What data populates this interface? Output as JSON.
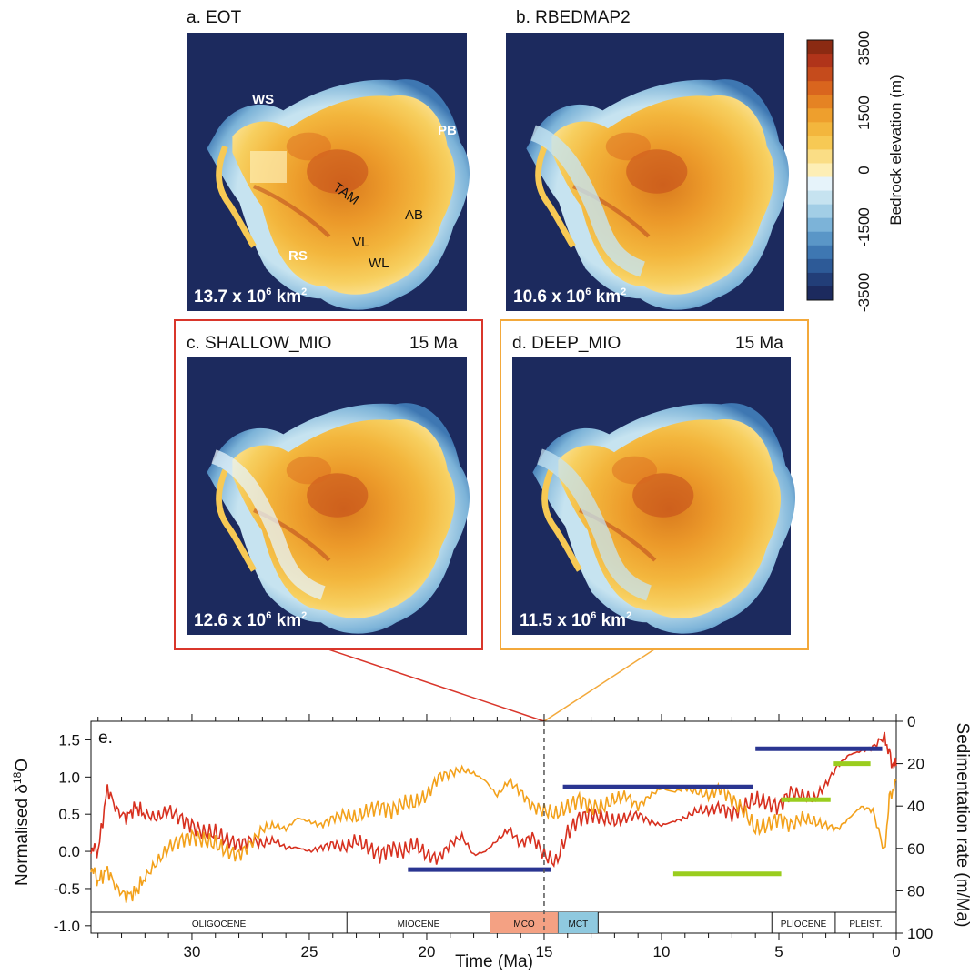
{
  "colors": {
    "ocean": "#1c2a5e",
    "red_series": "#d7301f",
    "orange_series": "#f3a11b",
    "blue_bars": "#2a3591",
    "green_bars": "#9acd1e",
    "frame_c": "#d9362b",
    "frame_d": "#f3a93b",
    "mco": "#f4a183",
    "mct": "#8fc9df"
  },
  "maps": [
    {
      "id": "a",
      "title": "a. EOT",
      "age": "",
      "area_base": "13.7 x 10",
      "area_exp": "6",
      "area_unit": " km",
      "area_sq": "2"
    },
    {
      "id": "b",
      "title": "b. RBEDMAP2",
      "age": "",
      "area_base": "10.6 x 10",
      "area_exp": "6",
      "area_unit": " km",
      "area_sq": "2"
    },
    {
      "id": "c",
      "title": "c. SHALLOW_MIO",
      "age": "15 Ma",
      "area_base": "12.6 x 10",
      "area_exp": "6",
      "area_unit": " km",
      "area_sq": "2"
    },
    {
      "id": "d",
      "title": "d. DEEP_MIO",
      "age": "15 Ma",
      "area_base": "11.5 x 10",
      "area_exp": "6",
      "area_unit": " km",
      "area_sq": "2"
    }
  ],
  "map_labels": {
    "WS": "WS",
    "PB": "PB",
    "TAM": "TAM",
    "AB": "AB",
    "RS": "RS",
    "VL": "VL",
    "WL": "WL"
  },
  "colorbar": {
    "title": "Bedrock elevation (m)",
    "ticks": [
      "3500",
      "1500",
      "0",
      "-1500",
      "-3500"
    ],
    "colors": [
      "#8b2a12",
      "#b0341a",
      "#c54b1c",
      "#d9651e",
      "#e58323",
      "#ee9f2d",
      "#f3b63d",
      "#f7c954",
      "#fadd85",
      "#fdeeb5",
      "#e6f3fa",
      "#c6e3f0",
      "#a2cee6",
      "#7cb3d8",
      "#5a96c7",
      "#3e77b2",
      "#2d5a97",
      "#223e78",
      "#1c2a5e"
    ]
  },
  "chart_data": {
    "type": "line",
    "panel_label": "e.",
    "xlabel": "Time (Ma)",
    "ylabel": "Normalised δ18O",
    "ylabel_main": "Normalised δ",
    "ylabel_sup": "18",
    "ylabel_end": "O",
    "y2label": "Sedimentation rate (m/Ma)",
    "xlim": [
      34.3,
      0
    ],
    "ylim": [
      -1.1,
      1.75
    ],
    "y2lim": [
      100,
      0
    ],
    "x_ticks": [
      30,
      25,
      20,
      15,
      10,
      5,
      0
    ],
    "x_tick_labels": [
      "30",
      "25",
      "20",
      "15",
      "10",
      "5",
      "0"
    ],
    "y_ticks": [
      1.5,
      1.0,
      0.5,
      0.0,
      -0.5,
      -1.0
    ],
    "y_tick_labels": [
      "1.5",
      "1.0",
      "0.5",
      "0.0",
      "-0.5",
      "-1.0"
    ],
    "y2_ticks": [
      0,
      20,
      40,
      60,
      80,
      100
    ],
    "y2_tick_labels": [
      "0",
      "20",
      "40",
      "60",
      "80",
      "100"
    ],
    "marker_x": 15,
    "series": [
      {
        "color": "#d7301f",
        "points": [
          [
            34.3,
            0.05
          ],
          [
            34,
            0.0
          ],
          [
            33.6,
            0.85
          ],
          [
            33.2,
            0.55
          ],
          [
            32.8,
            0.45
          ],
          [
            32.4,
            0.6
          ],
          [
            32,
            0.5
          ],
          [
            31.5,
            0.45
          ],
          [
            31,
            0.55
          ],
          [
            30.5,
            0.45
          ],
          [
            30,
            0.35
          ],
          [
            29.5,
            0.25
          ],
          [
            29,
            0.25
          ],
          [
            28.5,
            0.15
          ],
          [
            28,
            0.1
          ],
          [
            27.5,
            0.15
          ],
          [
            27,
            0.1
          ],
          [
            26.5,
            0.15
          ],
          [
            26,
            0.05
          ],
          [
            25.5,
            0.05
          ],
          [
            25,
            0.0
          ],
          [
            24.5,
            0.05
          ],
          [
            24,
            0.1
          ],
          [
            23.5,
            0.05
          ],
          [
            23,
            0.15
          ],
          [
            22.5,
            0.05
          ],
          [
            22,
            -0.05
          ],
          [
            21.5,
            0.05
          ],
          [
            21,
            0.0
          ],
          [
            20.5,
            0.1
          ],
          [
            20,
            -0.05
          ],
          [
            19.5,
            -0.1
          ],
          [
            19,
            0.1
          ],
          [
            18.5,
            0.2
          ],
          [
            18,
            -0.05
          ],
          [
            17.5,
            0.0
          ],
          [
            17,
            0.15
          ],
          [
            16.5,
            0.3
          ],
          [
            16,
            0.1
          ],
          [
            15.5,
            0.2
          ],
          [
            15,
            -0.05
          ],
          [
            14.5,
            -0.15
          ],
          [
            14,
            0.25
          ],
          [
            13.5,
            0.45
          ],
          [
            13,
            0.5
          ],
          [
            12.5,
            0.45
          ],
          [
            12,
            0.4
          ],
          [
            11.5,
            0.45
          ],
          [
            11,
            0.5
          ],
          [
            10.5,
            0.4
          ],
          [
            10,
            0.35
          ],
          [
            9.5,
            0.4
          ],
          [
            9,
            0.45
          ],
          [
            8.5,
            0.55
          ],
          [
            8,
            0.55
          ],
          [
            7.5,
            0.6
          ],
          [
            7,
            0.5
          ],
          [
            6.5,
            0.6
          ],
          [
            6,
            0.7
          ],
          [
            5.5,
            0.65
          ],
          [
            5,
            0.6
          ],
          [
            4.5,
            0.8
          ],
          [
            4,
            0.75
          ],
          [
            3.5,
            0.7
          ],
          [
            3,
            0.9
          ],
          [
            2.5,
            1.15
          ],
          [
            2,
            1.3
          ],
          [
            1.5,
            1.35
          ],
          [
            1,
            1.4
          ],
          [
            0.5,
            1.55
          ],
          [
            0.2,
            1.2
          ],
          [
            0,
            1.15
          ]
        ]
      },
      {
        "color": "#f3a11b",
        "points": [
          [
            34.3,
            -0.2
          ],
          [
            34,
            -0.4
          ],
          [
            33.6,
            -0.25
          ],
          [
            33.2,
            -0.5
          ],
          [
            32.8,
            -0.6
          ],
          [
            32.4,
            -0.55
          ],
          [
            32,
            -0.35
          ],
          [
            31.5,
            -0.15
          ],
          [
            31,
            0.05
          ],
          [
            30.5,
            0.15
          ],
          [
            30,
            0.2
          ],
          [
            29.5,
            0.15
          ],
          [
            29,
            0.1
          ],
          [
            28.5,
            0.0
          ],
          [
            28,
            -0.05
          ],
          [
            27.5,
            0.1
          ],
          [
            27,
            0.3
          ],
          [
            26.5,
            0.35
          ],
          [
            26,
            0.3
          ],
          [
            25.5,
            0.45
          ],
          [
            25,
            0.4
          ],
          [
            24.5,
            0.35
          ],
          [
            24,
            0.45
          ],
          [
            23.5,
            0.5
          ],
          [
            23,
            0.45
          ],
          [
            22.5,
            0.55
          ],
          [
            22,
            0.6
          ],
          [
            21.5,
            0.55
          ],
          [
            21,
            0.65
          ],
          [
            20.5,
            0.65
          ],
          [
            20,
            0.75
          ],
          [
            19.5,
            1.0
          ],
          [
            19,
            1.05
          ],
          [
            18.5,
            1.1
          ],
          [
            18,
            1.05
          ],
          [
            17.5,
            0.95
          ],
          [
            17,
            0.75
          ],
          [
            16.5,
            0.95
          ],
          [
            16,
            0.8
          ],
          [
            15.5,
            0.6
          ],
          [
            15,
            0.55
          ],
          [
            14.5,
            0.5
          ],
          [
            14,
            0.6
          ],
          [
            13.5,
            0.7
          ],
          [
            13,
            0.6
          ],
          [
            12.5,
            0.6
          ],
          [
            12,
            0.7
          ],
          [
            11.5,
            0.75
          ],
          [
            11,
            0.6
          ],
          [
            10.5,
            0.75
          ],
          [
            10,
            0.85
          ],
          [
            9.5,
            0.8
          ],
          [
            9,
            0.85
          ],
          [
            8.5,
            0.8
          ],
          [
            8,
            0.75
          ],
          [
            7.5,
            0.85
          ],
          [
            7,
            0.7
          ],
          [
            6.5,
            0.55
          ],
          [
            6,
            0.3
          ],
          [
            5.5,
            0.35
          ],
          [
            5,
            0.45
          ],
          [
            4.5,
            0.35
          ],
          [
            4,
            0.45
          ],
          [
            3.5,
            0.4
          ],
          [
            3,
            0.35
          ],
          [
            2.5,
            0.3
          ],
          [
            2,
            0.45
          ],
          [
            1.5,
            0.6
          ],
          [
            1,
            0.55
          ],
          [
            0.5,
            0.0
          ],
          [
            0.3,
            0.7
          ],
          [
            0,
            0.95
          ]
        ]
      }
    ],
    "blue_bars": [
      {
        "x0": 20.8,
        "x1": 14.7,
        "rate": 70
      },
      {
        "x0": 14.2,
        "x1": 6.1,
        "rate": 31
      },
      {
        "x0": 6.0,
        "x1": 0.6,
        "rate": 13
      }
    ],
    "green_bars": [
      {
        "x0": 9.5,
        "x1": 4.9,
        "rate": 72
      },
      {
        "x0": 4.9,
        "x1": 2.8,
        "rate": 37
      },
      {
        "x0": 2.7,
        "x1": 1.1,
        "rate": 20
      }
    ],
    "epochs": [
      {
        "label": "OLIGOCENE",
        "x0": 34.3,
        "x1": 23.4,
        "fill": ""
      },
      {
        "label": "MIOCENE",
        "x0": 23.4,
        "x1": 17.3,
        "fill": ""
      },
      {
        "label": "MCO",
        "x0": 17.3,
        "x1": 14.4,
        "fill": "#f4a183"
      },
      {
        "label": "MCT",
        "x0": 14.4,
        "x1": 12.7,
        "fill": "#8fc9df"
      },
      {
        "label": "",
        "x0": 12.7,
        "x1": 5.3,
        "fill": ""
      },
      {
        "label": "PLIOCENE",
        "x0": 5.3,
        "x1": 2.6,
        "fill": ""
      },
      {
        "label": "PLEIST.",
        "x0": 2.6,
        "x1": 0,
        "fill": ""
      }
    ]
  }
}
